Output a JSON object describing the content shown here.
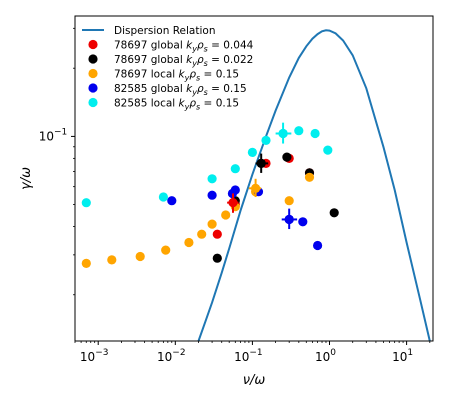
{
  "chart_data": {
    "type": "scatter",
    "xlabel": "ν/ω",
    "ylabel": "γ/ω",
    "x_scale": "log",
    "y_scale": "log",
    "xlim": [
      0.0005,
      22
    ],
    "ylim": [
      0.0125,
      0.34
    ],
    "x_ticks": [
      {
        "value": 0.001,
        "label": "10",
        "exp": "−3"
      },
      {
        "value": 0.01,
        "label": "10",
        "exp": "−2"
      },
      {
        "value": 0.1,
        "label": "10",
        "exp": "−1"
      },
      {
        "value": 1,
        "label": "10",
        "exp": "0"
      },
      {
        "value": 10,
        "label": "10",
        "exp": "1"
      }
    ],
    "y_ticks": [
      {
        "value": 0.1,
        "label": "10",
        "exp": "−1"
      }
    ],
    "grid": false,
    "legend_position": "top-left",
    "dispersion": {
      "name": "Dispersion Relation",
      "color": "#1f77b4",
      "x": [
        0.02,
        0.025,
        0.03,
        0.04,
        0.05,
        0.07,
        0.1,
        0.15,
        0.2,
        0.3,
        0.4,
        0.5,
        0.6,
        0.7,
        0.8,
        0.9,
        1.0,
        1.2,
        1.5,
        2.0,
        3.0,
        5.0,
        7.0,
        10.0,
        15.0,
        20.0
      ],
      "y": [
        0.0125,
        0.0155,
        0.0185,
        0.025,
        0.032,
        0.047,
        0.068,
        0.1,
        0.13,
        0.182,
        0.222,
        0.25,
        0.27,
        0.283,
        0.291,
        0.294,
        0.293,
        0.285,
        0.265,
        0.228,
        0.163,
        0.09,
        0.058,
        0.034,
        0.019,
        0.0125
      ]
    },
    "series": [
      {
        "name": "78697 global",
        "k_label": "k",
        "k_sub": "y",
        "rho_label": "ρ",
        "rho_sub": "s",
        "value": " = 0.044",
        "color": "#ee0000",
        "x": [
          0.035,
          0.06,
          0.15,
          0.3,
          0.55
        ],
        "y": [
          0.037,
          0.05,
          0.076,
          0.08,
          0.069
        ]
      },
      {
        "name": "78697 global",
        "k_label": "k",
        "k_sub": "y",
        "rho_label": "ρ",
        "rho_sub": "s",
        "value": " = 0.022",
        "color": "#000000",
        "x": [
          0.035,
          0.06,
          0.13,
          0.28,
          0.55,
          1.15
        ],
        "y": [
          0.029,
          0.052,
          0.076,
          0.081,
          0.069,
          0.046
        ]
      },
      {
        "name": "78697 local",
        "k_label": "k",
        "k_sub": "y",
        "rho_label": "ρ",
        "rho_sub": "s",
        "value": " = 0.15",
        "color": "#ffa500",
        "x": [
          0.0007,
          0.0015,
          0.0035,
          0.0075,
          0.015,
          0.022,
          0.03,
          0.045,
          0.06,
          0.11,
          0.3,
          0.55
        ],
        "y": [
          0.0275,
          0.0285,
          0.0295,
          0.0315,
          0.034,
          0.037,
          0.041,
          0.045,
          0.049,
          0.057,
          0.052,
          0.066
        ]
      },
      {
        "name": "82585 global",
        "k_label": "k",
        "k_sub": "y",
        "rho_label": "ρ",
        "rho_sub": "s",
        "value": " = 0.15",
        "color": "#0000ee",
        "x": [
          0.009,
          0.03,
          0.055,
          0.06,
          0.12,
          0.3,
          0.45,
          0.7
        ],
        "y": [
          0.052,
          0.055,
          0.056,
          0.058,
          0.057,
          0.043,
          0.042,
          0.033
        ]
      },
      {
        "name": "82585 local",
        "k_label": "k",
        "k_sub": "y",
        "rho_label": "ρ",
        "rho_sub": "s",
        "value": " = 0.15",
        "color": "#00eeee",
        "x": [
          0.0007,
          0.007,
          0.03,
          0.06,
          0.1,
          0.15,
          0.25,
          0.4,
          0.65,
          0.95
        ],
        "y": [
          0.051,
          0.054,
          0.065,
          0.072,
          0.085,
          0.096,
          0.103,
          0.106,
          0.103,
          0.087
        ]
      }
    ],
    "error_markers": [
      {
        "x": 0.056,
        "y": 0.051,
        "color": "#ee0000",
        "xerr": [
          0.047,
          0.066
        ],
        "yerr": [
          0.046,
          0.056
        ]
      },
      {
        "x": 0.11,
        "y": 0.059,
        "color": "#ffa500",
        "xerr": [
          0.09,
          0.13
        ],
        "yerr": [
          0.054,
          0.065
        ]
      },
      {
        "x": 0.13,
        "y": 0.076,
        "color": "#000000",
        "xerr": [
          0.11,
          0.16
        ],
        "yerr": [
          0.069,
          0.084
        ]
      },
      {
        "x": 0.3,
        "y": 0.043,
        "color": "#0000ee",
        "xerr": [
          0.24,
          0.38
        ],
        "yerr": [
          0.039,
          0.048
        ]
      },
      {
        "x": 0.25,
        "y": 0.103,
        "color": "#00eeee",
        "xerr": [
          0.2,
          0.32
        ],
        "yerr": [
          0.093,
          0.115
        ]
      }
    ]
  }
}
